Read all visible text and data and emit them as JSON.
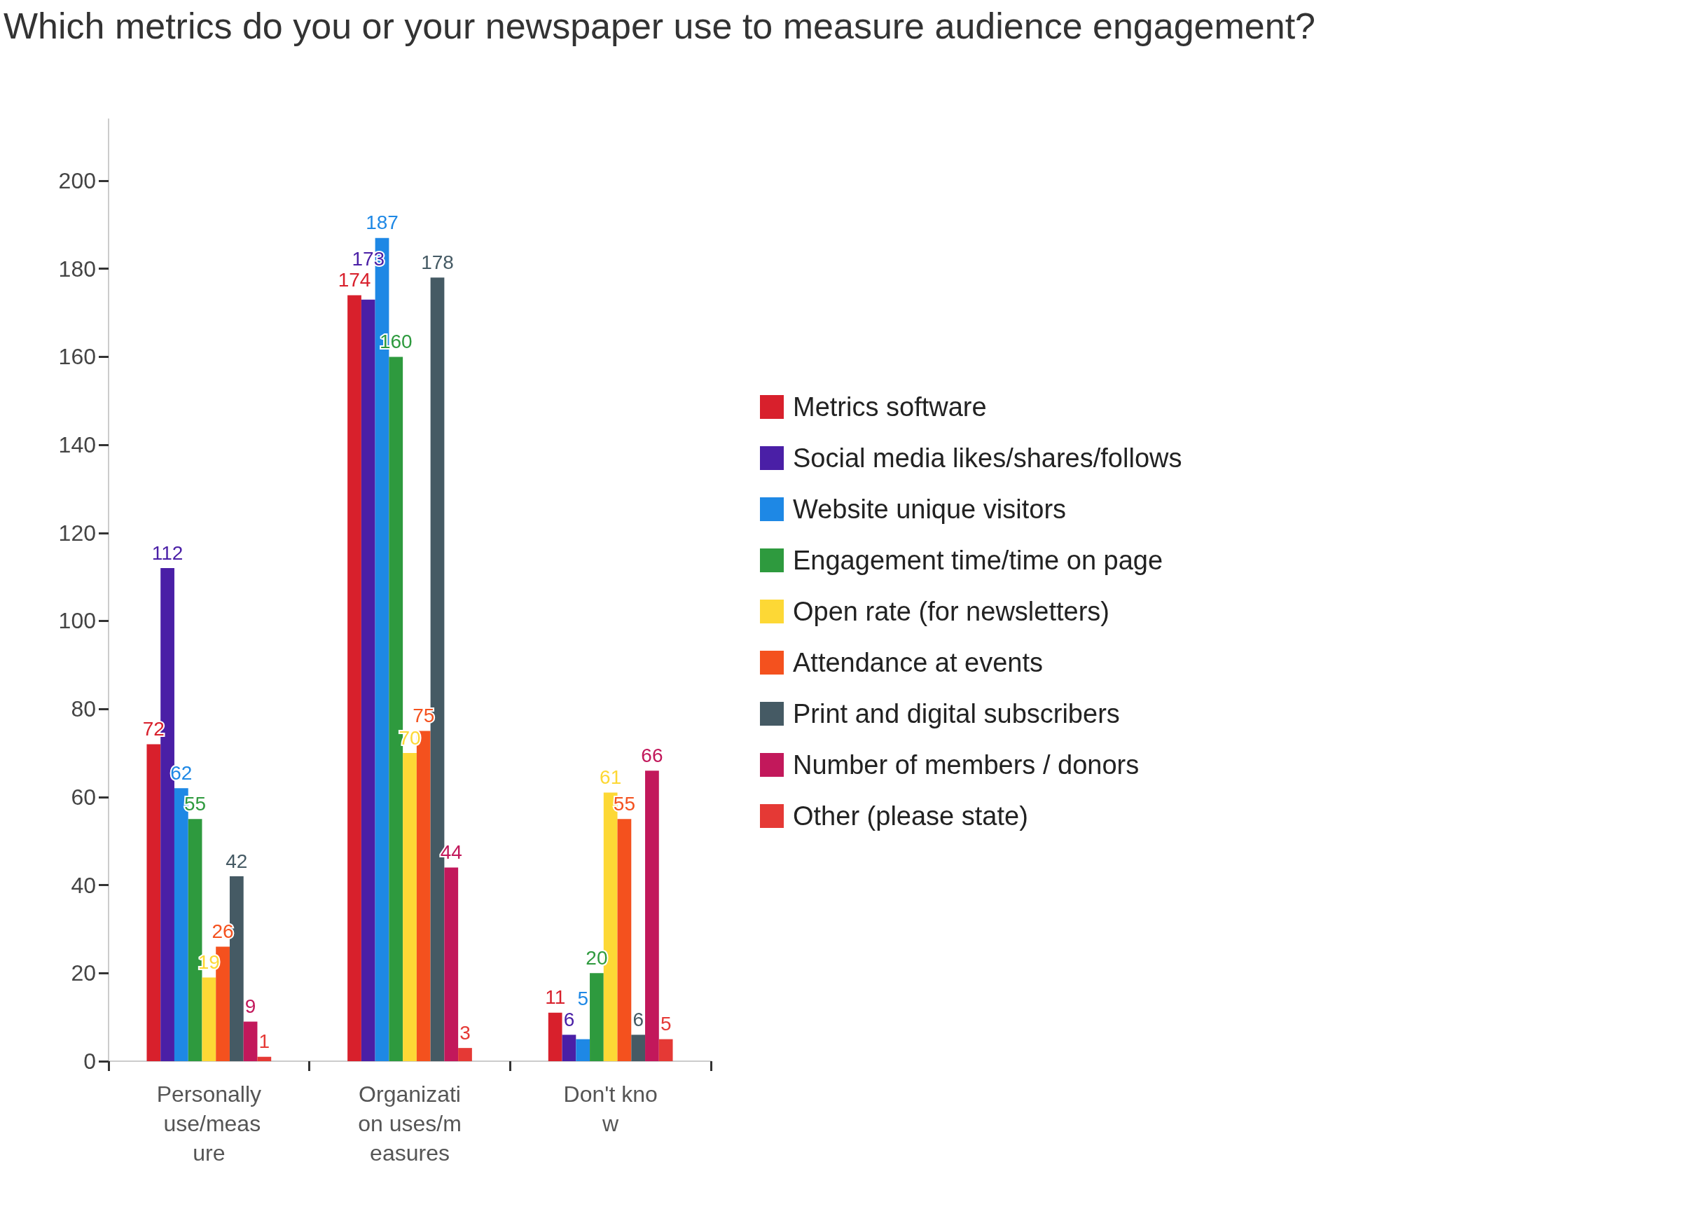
{
  "chart_data": {
    "type": "bar",
    "title": "Which metrics do you or your newspaper use to measure audience engagement?",
    "categories": [
      "Personally use/measure",
      "Organization uses/measures",
      "Don't know"
    ],
    "series": [
      {
        "name": "Metrics software",
        "color": "#d8202c",
        "values": [
          72,
          174,
          11
        ]
      },
      {
        "name": "Social media likes/shares/follows",
        "color": "#4a1fa6",
        "values": [
          112,
          173,
          6
        ]
      },
      {
        "name": "Website unique visitors",
        "color": "#1e88e5",
        "values": [
          62,
          187,
          5
        ]
      },
      {
        "name": "Engagement time/time on page",
        "color": "#2e9a3e",
        "values": [
          55,
          160,
          20
        ]
      },
      {
        "name": "Open rate (for newsletters)",
        "color": "#fdd835",
        "values": [
          19,
          70,
          61
        ]
      },
      {
        "name": "Attendance at events",
        "color": "#f4511e",
        "values": [
          26,
          75,
          55
        ]
      },
      {
        "name": "Print and digital subscribers",
        "color": "#455a64",
        "values": [
          42,
          178,
          6
        ]
      },
      {
        "name": "Number of members / donors",
        "color": "#c2185b",
        "values": [
          9,
          44,
          66
        ]
      },
      {
        "name": "Other (please state)",
        "color": "#e53935",
        "values": [
          1,
          3,
          5
        ]
      }
    ],
    "ylim": [
      0,
      214
    ],
    "yticks": [
      0,
      20,
      40,
      60,
      80,
      100,
      120,
      140,
      160,
      180,
      200
    ],
    "data_labels": true,
    "grid": false,
    "legend": "right"
  }
}
